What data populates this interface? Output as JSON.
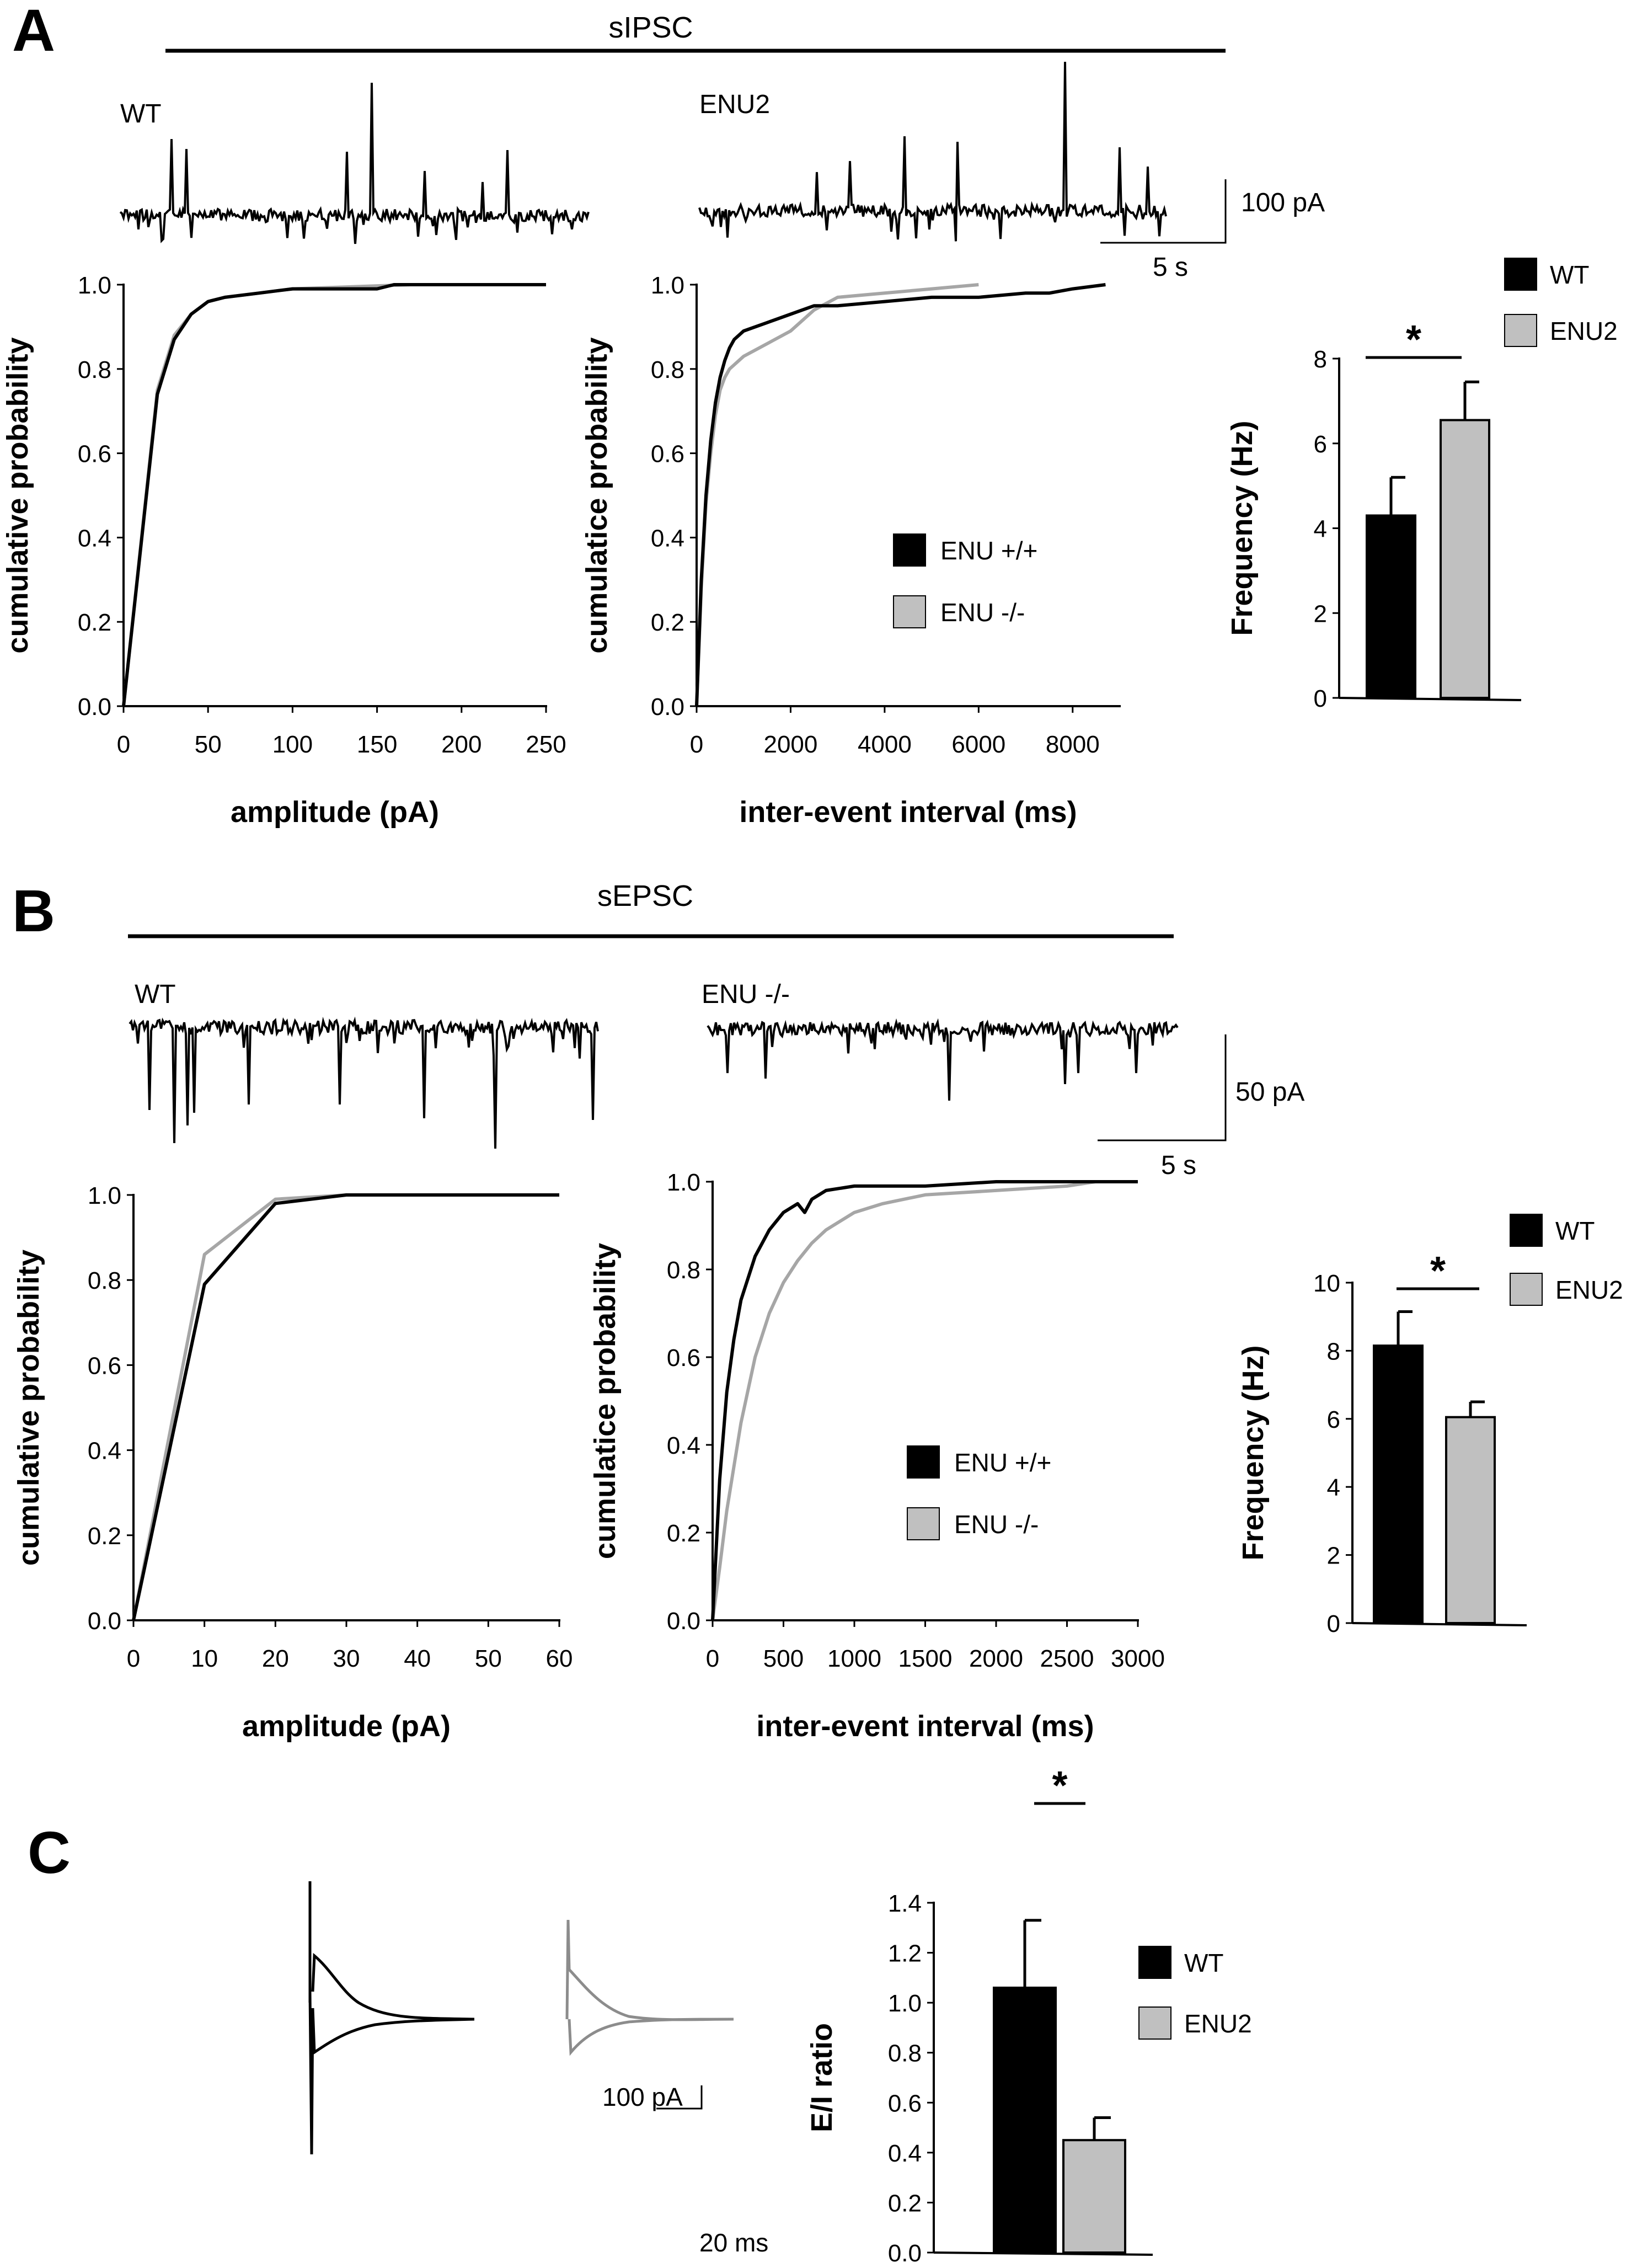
{
  "colors": {
    "black": "#000000",
    "gray": "#a6a6a6",
    "bar_gray": "#c0c0c0"
  },
  "panelA": {
    "letter": "A",
    "title": "sIPSC",
    "wt_label": "WT",
    "enu_label": "ENU2",
    "scale_amp": "100 pA",
    "scale_time": "5 s"
  },
  "panelB": {
    "letter": "B",
    "title": "sEPSC",
    "wt_label": "WT",
    "enu_label": "ENU -/-",
    "scale_amp": "50 pA",
    "scale_time": "5 s"
  },
  "panelC": {
    "letter": "C",
    "scale_amp": "100 pA",
    "scale_time": "20 ms"
  },
  "chart_data": [
    {
      "id": "A1",
      "type": "line",
      "xlabel": "amplitude (pA)",
      "ylabel": "cumulative probability",
      "xlim": [
        0,
        250
      ],
      "ylim": [
        0,
        1.0
      ],
      "xticks": [
        0,
        50,
        100,
        150,
        200,
        250
      ],
      "yticks": [
        0.0,
        0.2,
        0.4,
        0.6,
        0.8,
        1.0
      ],
      "series": [
        {
          "name": "ENU +/+",
          "color": "#000000",
          "x": [
            0,
            20,
            30,
            40,
            50,
            60,
            80,
            100,
            150,
            160,
            250
          ],
          "y": [
            0,
            0.74,
            0.87,
            0.93,
            0.96,
            0.97,
            0.98,
            0.99,
            0.99,
            1.0,
            1.0
          ]
        },
        {
          "name": "ENU -/-",
          "color": "#a6a6a6",
          "x": [
            0,
            20,
            30,
            40,
            50,
            60,
            80,
            100,
            170,
            180
          ],
          "y": [
            0,
            0.75,
            0.88,
            0.93,
            0.96,
            0.97,
            0.98,
            0.99,
            1.0,
            1.0
          ]
        }
      ]
    },
    {
      "id": "A2",
      "type": "line",
      "xlabel": "inter-event interval (ms)",
      "ylabel": "cumulatice probability",
      "xlim": [
        0,
        9000
      ],
      "ylim": [
        0,
        1.0
      ],
      "xticks": [
        0,
        2000,
        4000,
        6000,
        8000
      ],
      "yticks": [
        0.0,
        0.2,
        0.4,
        0.6,
        0.8,
        1.0
      ],
      "legend": [
        "ENU +/+",
        "ENU -/-"
      ],
      "series": [
        {
          "name": "ENU +/+",
          "color": "#000000",
          "x": [
            0,
            100,
            200,
            300,
            400,
            500,
            600,
            700,
            800,
            1000,
            1500,
            2000,
            2500,
            3000,
            4000,
            5000,
            6000,
            7000,
            7500,
            8000,
            8700
          ],
          "y": [
            0,
            0.3,
            0.5,
            0.63,
            0.72,
            0.78,
            0.82,
            0.85,
            0.87,
            0.89,
            0.91,
            0.93,
            0.95,
            0.95,
            0.96,
            0.97,
            0.97,
            0.98,
            0.98,
            0.99,
            1.0
          ]
        },
        {
          "name": "ENU -/-",
          "color": "#a6a6a6",
          "x": [
            0,
            100,
            200,
            300,
            400,
            500,
            600,
            700,
            800,
            1000,
            1500,
            2000,
            2500,
            3000,
            4000,
            5000,
            6000
          ],
          "y": [
            0,
            0.28,
            0.48,
            0.6,
            0.69,
            0.75,
            0.78,
            0.8,
            0.81,
            0.83,
            0.86,
            0.89,
            0.94,
            0.97,
            0.98,
            0.99,
            1.0
          ]
        }
      ]
    },
    {
      "id": "A3",
      "type": "bar",
      "ylabel": "Frequency (Hz)",
      "ylim": [
        0,
        8
      ],
      "yticks": [
        0,
        2,
        4,
        6,
        8
      ],
      "legend": [
        "WT",
        "ENU2"
      ],
      "categories": [
        "WT",
        "ENU2"
      ],
      "values": [
        4.3,
        6.55
      ],
      "errors": [
        0.9,
        0.9
      ],
      "significance": "*"
    },
    {
      "id": "B1",
      "type": "line",
      "xlabel": "amplitude (pA)",
      "ylabel": "cumulative probability",
      "xlim": [
        0,
        60
      ],
      "ylim": [
        0,
        1.0
      ],
      "xticks": [
        0,
        10,
        20,
        30,
        40,
        50,
        60
      ],
      "yticks": [
        0.0,
        0.2,
        0.4,
        0.6,
        0.8,
        1.0
      ],
      "series": [
        {
          "name": "ENU +/+",
          "color": "#000000",
          "x": [
            0,
            10,
            20,
            30,
            60
          ],
          "y": [
            0,
            0.79,
            0.98,
            1.0,
            1.0
          ]
        },
        {
          "name": "ENU -/-",
          "color": "#a6a6a6",
          "x": [
            0,
            10,
            20,
            30,
            40
          ],
          "y": [
            0,
            0.86,
            0.99,
            1.0,
            1.0
          ]
        }
      ]
    },
    {
      "id": "B2",
      "type": "line",
      "xlabel": "inter-event interval (ms)",
      "ylabel": "cumulatice probability",
      "xlim": [
        0,
        3000
      ],
      "ylim": [
        0,
        1.0
      ],
      "xticks": [
        0,
        500,
        1000,
        1500,
        2000,
        2500,
        3000
      ],
      "yticks": [
        0.0,
        0.2,
        0.4,
        0.6,
        0.8,
        1.0
      ],
      "legend": [
        "ENU +/+",
        "ENU -/-"
      ],
      "series": [
        {
          "name": "ENU +/+",
          "color": "#000000",
          "x": [
            0,
            50,
            100,
            150,
            200,
            300,
            400,
            500,
            600,
            650,
            700,
            800,
            1000,
            1500,
            2000,
            3000
          ],
          "y": [
            0,
            0.32,
            0.52,
            0.64,
            0.73,
            0.83,
            0.89,
            0.93,
            0.95,
            0.93,
            0.96,
            0.98,
            0.99,
            0.99,
            1.0,
            1.0
          ]
        },
        {
          "name": "ENU -/-",
          "color": "#a6a6a6",
          "x": [
            0,
            50,
            100,
            200,
            300,
            400,
            500,
            600,
            700,
            800,
            1000,
            1200,
            1500,
            2000,
            2500,
            2700,
            3000
          ],
          "y": [
            0,
            0.12,
            0.25,
            0.45,
            0.6,
            0.7,
            0.77,
            0.82,
            0.86,
            0.89,
            0.93,
            0.95,
            0.97,
            0.98,
            0.99,
            1.0,
            1.0
          ]
        }
      ]
    },
    {
      "id": "B3",
      "type": "bar",
      "ylabel": "Frequency (Hz)",
      "ylim": [
        0,
        10
      ],
      "yticks": [
        0,
        2,
        4,
        6,
        8,
        10
      ],
      "legend": [
        "WT",
        "ENU2"
      ],
      "categories": [
        "WT",
        "ENU2"
      ],
      "values": [
        8.15,
        6.05
      ],
      "errors": [
        1.0,
        0.45
      ],
      "significance": "*"
    },
    {
      "id": "C",
      "type": "bar",
      "ylabel": "E/I ratio",
      "ylim": [
        0,
        1.4
      ],
      "yticks": [
        0.0,
        0.2,
        0.4,
        0.6,
        0.8,
        1.0,
        1.2,
        1.4
      ],
      "legend": [
        "WT",
        "ENU2"
      ],
      "categories": [
        "WT",
        "ENU2"
      ],
      "values": [
        1.06,
        0.45
      ],
      "errors": [
        0.27,
        0.09
      ],
      "significance": "*"
    }
  ]
}
